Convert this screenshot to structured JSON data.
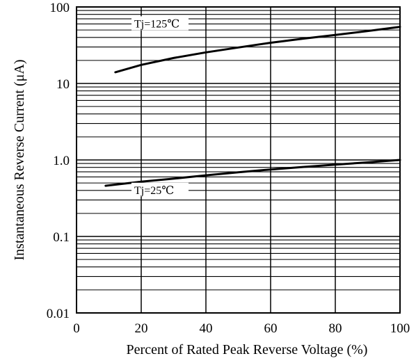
{
  "chart_data": {
    "type": "line",
    "title": "",
    "xlabel": "Percent of Rated Peak Reverse Voltage (%)",
    "ylabel": "Instantaneous Reverse Current (μA)",
    "xlim": [
      0,
      100
    ],
    "ylim": [
      0.01,
      100
    ],
    "yscale": "log",
    "x_ticks": [
      0,
      20,
      40,
      60,
      80,
      100
    ],
    "x_tick_labels": [
      "0",
      "20",
      "40",
      "60",
      "80",
      "100"
    ],
    "y_ticks": [
      0.01,
      0.1,
      1,
      10,
      100
    ],
    "y_tick_labels": [
      "0.01",
      "0.1",
      "1.0",
      "10",
      "100"
    ],
    "grid": true,
    "series": [
      {
        "name": "Tj=125℃",
        "x": [
          12,
          20,
          30,
          40,
          50,
          60,
          70,
          80,
          90,
          100
        ],
        "y": [
          14,
          17.5,
          21.5,
          25.5,
          29.5,
          34,
          38.5,
          43,
          48.5,
          55
        ]
      },
      {
        "name": "Tj=25℃",
        "x": [
          9,
          20,
          30,
          40,
          50,
          60,
          70,
          80,
          90,
          100
        ],
        "y": [
          0.46,
          0.52,
          0.57,
          0.63,
          0.69,
          0.75,
          0.81,
          0.87,
          0.93,
          1.0
        ]
      }
    ]
  }
}
